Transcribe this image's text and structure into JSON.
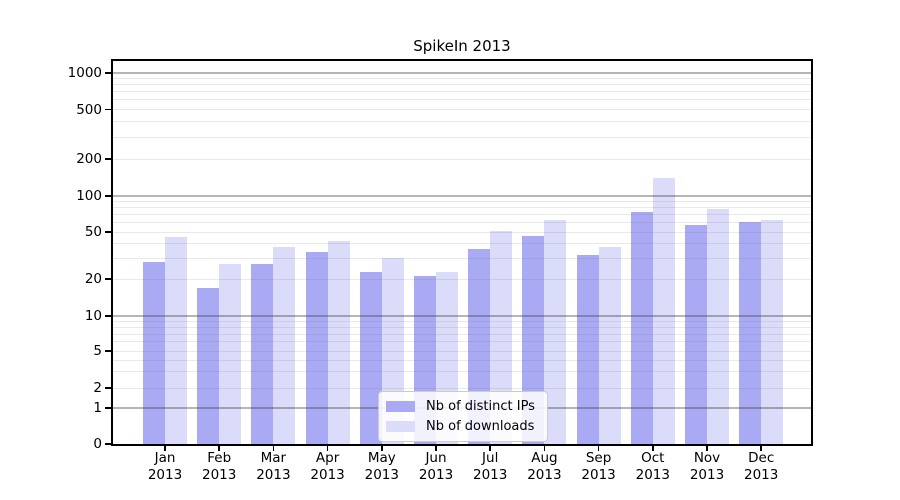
{
  "title": "SpikeIn 2013",
  "chart_data": {
    "type": "bar",
    "title": "SpikeIn 2013",
    "yscale": "log",
    "grid": true,
    "legend_position": "lower center",
    "categories": [
      "Jan",
      "Feb",
      "Mar",
      "Apr",
      "May",
      "Jun",
      "Jul",
      "Aug",
      "Sep",
      "Oct",
      "Nov",
      "Dec"
    ],
    "x_year": "2013",
    "series": [
      {
        "name": "Nb of distinct IPs",
        "color": "#a9a9f4",
        "values": [
          28,
          17,
          27,
          34,
          23,
          21,
          36,
          46,
          32,
          73,
          57,
          61
        ]
      },
      {
        "name": "Nb of downloads",
        "color": "#dbdbfa",
        "values": [
          45,
          27,
          37,
          42,
          30,
          23,
          51,
          63,
          37,
          140,
          78,
          63
        ]
      }
    ],
    "y_ticks": [
      0,
      1,
      2,
      5,
      10,
      20,
      50,
      100,
      200,
      500,
      1000
    ],
    "ylim": [
      0,
      1400
    ]
  },
  "colors": {
    "background": "#ffffff",
    "spine": "#000000",
    "grid_decade": "rgba(70,70,70,0.40)",
    "grid_minor": "rgba(120,120,120,0.16)",
    "text": "#000000",
    "legend_border": "#cccccc"
  }
}
